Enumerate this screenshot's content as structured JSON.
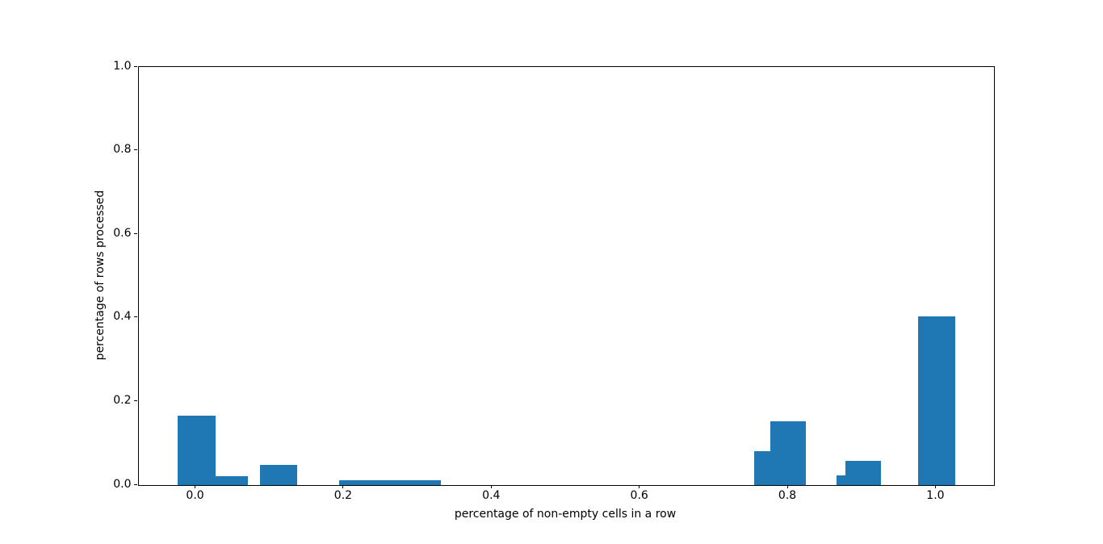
{
  "figure": {
    "background_color": "#ffffff",
    "spine_color": "#000000",
    "text_color": "#000000"
  },
  "chart_data": {
    "type": "bar",
    "title": "",
    "xlabel": "percentage of non-empty cells in a row",
    "ylabel": "percentage of rows processed",
    "xlim": [
      -0.0775,
      1.0775
    ],
    "ylim": [
      0,
      1
    ],
    "grid": false,
    "legend_position": "none",
    "bar_color": "#1f77b4",
    "x_tick_values": [
      0.0,
      0.2,
      0.4,
      0.6,
      0.8,
      1.0
    ],
    "x_tick_labels": [
      "0.0",
      "0.2",
      "0.4",
      "0.6",
      "0.8",
      "1.0"
    ],
    "y_tick_values": [
      0.0,
      0.2,
      0.4,
      0.6,
      0.8,
      1.0
    ],
    "y_tick_labels": [
      "0.0",
      "0.2",
      "0.4",
      "0.6",
      "0.8",
      "1.0"
    ],
    "bars": [
      {
        "x_start": -0.025,
        "x_end": 0.027,
        "height": 0.167
      },
      {
        "x_start": 0.027,
        "x_end": 0.07,
        "height": 0.022
      },
      {
        "x_start": 0.087,
        "x_end": 0.137,
        "height": 0.048
      },
      {
        "x_start": 0.193,
        "x_end": 0.331,
        "height": 0.011
      },
      {
        "x_start": 0.754,
        "x_end": 0.776,
        "height": 0.082
      },
      {
        "x_start": 0.776,
        "x_end": 0.824,
        "height": 0.152
      },
      {
        "x_start": 0.865,
        "x_end": 0.877,
        "height": 0.023
      },
      {
        "x_start": 0.877,
        "x_end": 0.925,
        "height": 0.058
      },
      {
        "x_start": 0.975,
        "x_end": 1.026,
        "height": 0.403
      }
    ]
  }
}
